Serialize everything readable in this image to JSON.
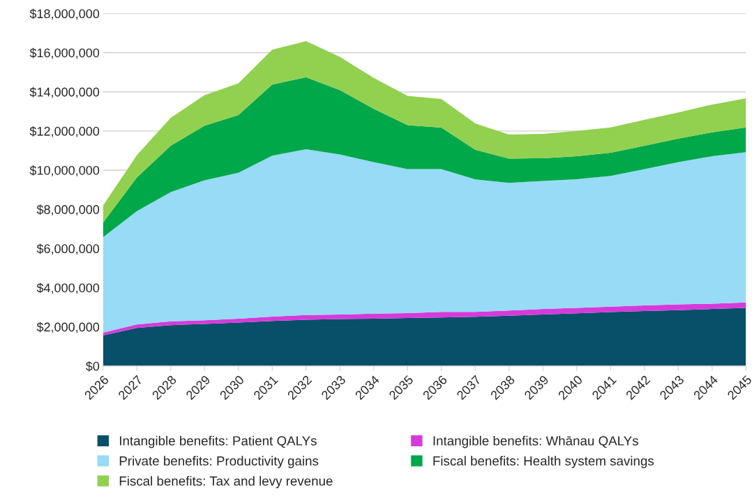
{
  "chart_data": {
    "type": "area",
    "stacked": true,
    "grid": "y",
    "legend": "bottom",
    "categories": [
      "2026",
      "2027",
      "2028",
      "2029",
      "2030",
      "2031",
      "2032",
      "2033",
      "2034",
      "2035",
      "2036",
      "2037",
      "2038",
      "2039",
      "2040",
      "2041",
      "2042",
      "2043",
      "2044",
      "2045"
    ],
    "ylim": [
      0,
      18000000
    ],
    "yticks": [
      {
        "value": 0,
        "label": "$0"
      },
      {
        "value": 2000000,
        "label": "$2,000,000"
      },
      {
        "value": 4000000,
        "label": "$4,000,000"
      },
      {
        "value": 6000000,
        "label": "$6,000,000"
      },
      {
        "value": 8000000,
        "label": "$8,000,000"
      },
      {
        "value": 10000000,
        "label": "$10,000,000"
      },
      {
        "value": 12000000,
        "label": "$12,000,000"
      },
      {
        "value": 14000000,
        "label": "$14,000,000"
      },
      {
        "value": 16000000,
        "label": "$16,000,000"
      },
      {
        "value": 18000000,
        "label": "$18,000,000"
      }
    ],
    "series": [
      {
        "name": "Intangible benefits: Patient QALYs",
        "color": "#084f6a",
        "values": [
          1560000,
          1940000,
          2090000,
          2150000,
          2220000,
          2300000,
          2360000,
          2400000,
          2420000,
          2450000,
          2480000,
          2510000,
          2570000,
          2630000,
          2690000,
          2750000,
          2810000,
          2850000,
          2910000,
          2970000
        ]
      },
      {
        "name": "Intangible benefits: Whānau QALYs",
        "color": "#d63adb",
        "values": [
          140000,
          180000,
          190000,
          190000,
          200000,
          220000,
          240000,
          230000,
          250000,
          250000,
          280000,
          250000,
          260000,
          280000,
          280000,
          280000,
          280000,
          300000,
          270000,
          270000
        ]
      },
      {
        "name": "Private benefits: Productivity gains",
        "color": "#97dbf6",
        "values": [
          4870000,
          5790000,
          6600000,
          7140000,
          7450000,
          8220000,
          8470000,
          8170000,
          7740000,
          7350000,
          7290000,
          6770000,
          6520000,
          6540000,
          6570000,
          6680000,
          6960000,
          7260000,
          7530000,
          7680000
        ]
      },
      {
        "name": "Fiscal benefits: Health system savings",
        "color": "#00a84a",
        "values": [
          750000,
          1720000,
          2370000,
          2790000,
          2940000,
          3630000,
          3680000,
          3290000,
          2720000,
          2250000,
          2120000,
          1510000,
          1240000,
          1160000,
          1170000,
          1180000,
          1200000,
          1200000,
          1220000,
          1260000
        ]
      },
      {
        "name": "Fiscal benefits: Tax and levy revenue",
        "color": "#92d050",
        "values": [
          870000,
          1140000,
          1420000,
          1560000,
          1620000,
          1780000,
          1840000,
          1700000,
          1580000,
          1490000,
          1460000,
          1350000,
          1230000,
          1240000,
          1290000,
          1290000,
          1320000,
          1340000,
          1420000,
          1490000
        ]
      }
    ]
  }
}
